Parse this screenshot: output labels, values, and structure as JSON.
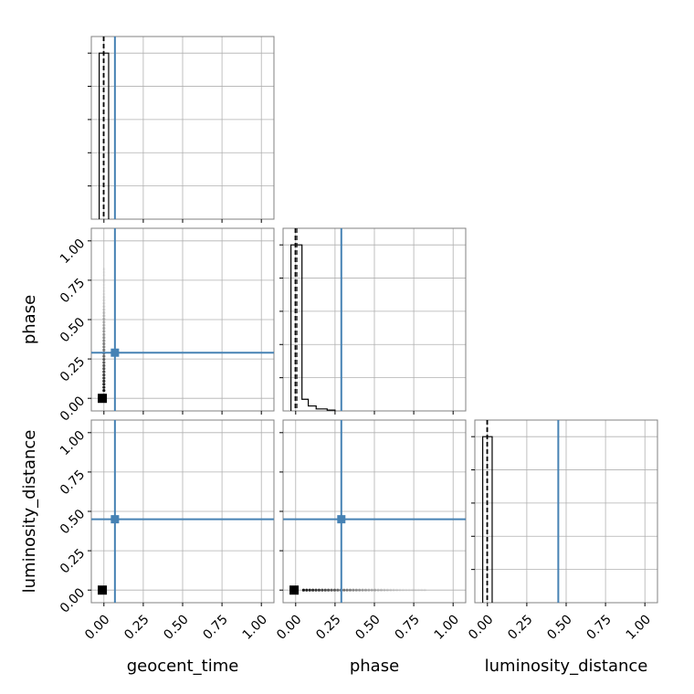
{
  "chart_data": {
    "type": "corner",
    "parameters": [
      "geocent_time",
      "phase",
      "luminosity_distance"
    ],
    "axis_range": [
      -0.08,
      1.08
    ],
    "tick_values": [
      0.0,
      0.25,
      0.5,
      0.75,
      1.0
    ],
    "tick_labels": [
      "0.00",
      "0.25",
      "0.50",
      "0.75",
      "1.00"
    ],
    "grid": true,
    "truth_color": "#4682b4",
    "truths": [
      0.07,
      0.29,
      0.45
    ],
    "quantiles": [
      {
        "parameter": "geocent_time",
        "values": [
          -0.003,
          0.0
        ]
      },
      {
        "parameter": "phase",
        "values": [
          -0.003,
          0.007
        ]
      },
      {
        "parameter": "luminosity_distance",
        "values": [
          -0.003,
          0.0
        ]
      }
    ],
    "histograms": [
      {
        "parameter": "geocent_time",
        "bins": [
          [
            -0.03,
            0.0,
            1.0
          ],
          [
            0.0,
            0.03,
            1.0
          ]
        ]
      },
      {
        "parameter": "phase",
        "bins": [
          [
            -0.03,
            0.0,
            1.0
          ],
          [
            0.0,
            0.04,
            1.0
          ],
          [
            0.04,
            0.08,
            0.07
          ],
          [
            0.08,
            0.13,
            0.03
          ],
          [
            0.13,
            0.2,
            0.012
          ],
          [
            0.2,
            0.25,
            0.005
          ]
        ]
      },
      {
        "parameter": "luminosity_distance",
        "bins": [
          [
            -0.03,
            0.0,
            1.0
          ],
          [
            0.0,
            0.03,
            1.0
          ]
        ]
      }
    ],
    "hist_ymax": 1.1,
    "scatter": [
      {
        "x": "geocent_time",
        "y": "phase",
        "main_point": [
          -0.01,
          0.0
        ],
        "tail": {
          "start": [
            0.0,
            0.05
          ],
          "end": [
            0.0,
            0.82
          ]
        }
      },
      {
        "x": "geocent_time",
        "y": "luminosity_distance",
        "main_point": [
          -0.01,
          0.0
        ]
      },
      {
        "x": "phase",
        "y": "luminosity_distance",
        "main_point": [
          -0.01,
          0.0
        ],
        "tail": {
          "start": [
            0.05,
            0.0
          ],
          "end": [
            0.82,
            0.0
          ]
        }
      }
    ]
  }
}
